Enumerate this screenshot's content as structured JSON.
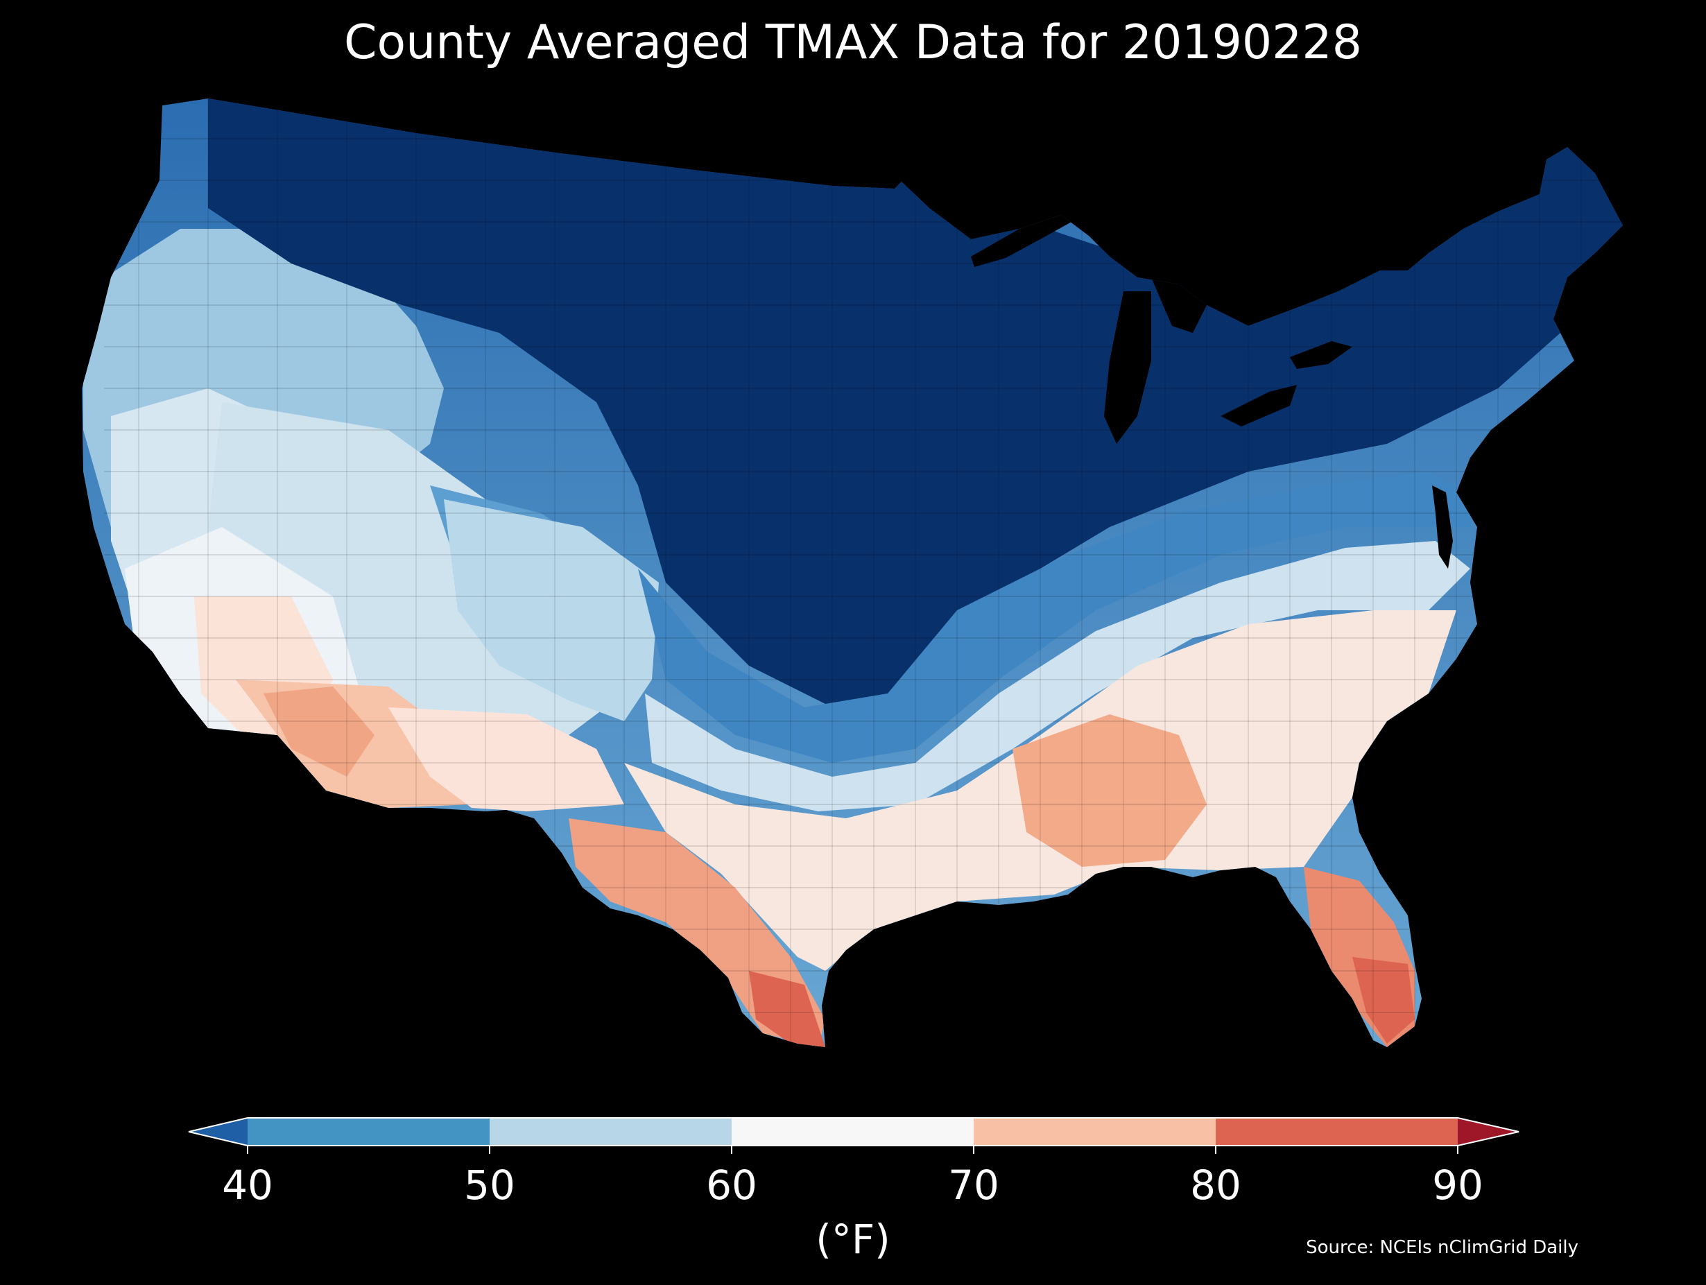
{
  "title": "County Averaged TMAX Data for 20190228",
  "colorbar": {
    "ticks": [
      "40",
      "50",
      "60",
      "70",
      "80",
      "90"
    ],
    "unit_label": "(°F)",
    "bins": [
      {
        "range": [
          40,
          50
        ],
        "color": "#4393c3"
      },
      {
        "range": [
          50,
          60
        ],
        "color": "#b7d6e8"
      },
      {
        "range": [
          60,
          70
        ],
        "color": "#f7f7f7"
      },
      {
        "range": [
          70,
          80
        ],
        "color": "#f8c1a5"
      },
      {
        "range": [
          80,
          90
        ],
        "color": "#dd6451"
      }
    ],
    "under_color": "#1f5fa6",
    "over_color": "#9e1729"
  },
  "source": "Source: NCEIs nClimGrid Daily",
  "map": {
    "region": "contiguous United States, county level",
    "background_color": "#000000",
    "coldest_color": "#08306b",
    "warmest_color": "#c4443b"
  }
}
